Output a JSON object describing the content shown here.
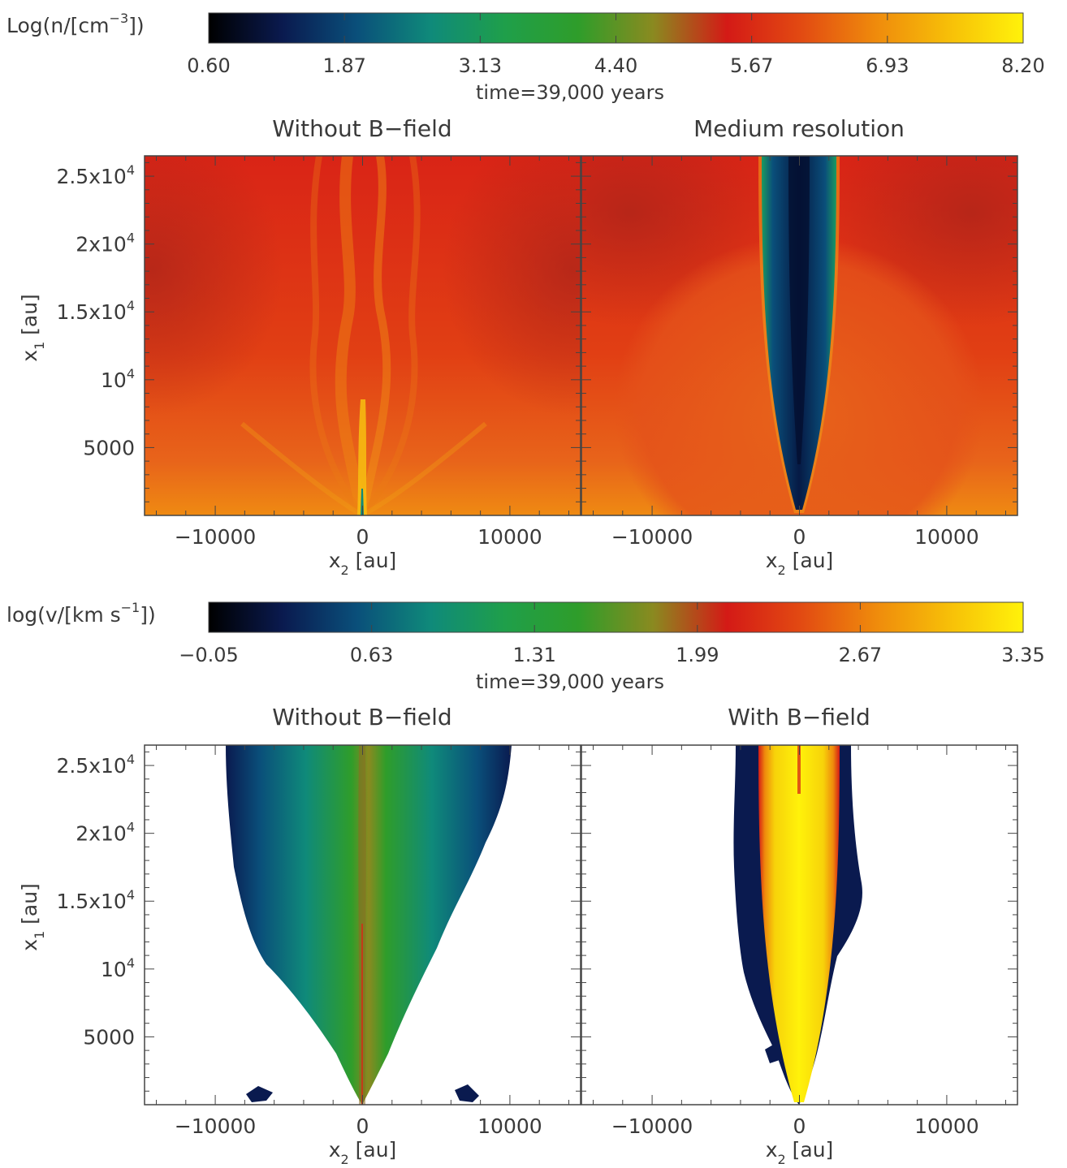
{
  "figure": {
    "colorbars": [
      {
        "label": "Log(n/[cm",
        "label_sup": "−3",
        "label_end": "])",
        "ticks": [
          "0.60",
          "1.87",
          "3.13",
          "4.40",
          "5.67",
          "6.93",
          "8.20"
        ],
        "range": [
          0.6,
          8.2
        ],
        "time": "time=39,000 years"
      },
      {
        "label": "log(v/[km s",
        "label_sup": "−1",
        "label_end": "])",
        "ticks": [
          "−0.05",
          "0.63",
          "1.31",
          "1.99",
          "2.67",
          "3.35"
        ],
        "range": [
          -0.05,
          3.35
        ],
        "time": "time=39,000 years"
      }
    ],
    "colormap": [
      "#000000",
      "#0a1a4f",
      "#0a4f7a",
      "#0f8a7a",
      "#1f9f4a",
      "#2f9d2a",
      "#8a8a20",
      "#d41a16",
      "#e24a12",
      "#ef8a0c",
      "#f7bf08",
      "#fff20a"
    ],
    "axis": {
      "x_label": "x",
      "x_sub": "2",
      "x_unit": " [au]",
      "y_label": "x",
      "y_sub": "1",
      "y_unit": " [au]",
      "x_ticks": [
        "−10000",
        "0",
        "10000"
      ],
      "y_ticks": [
        {
          "base": "2.5x10",
          "exp": "4"
        },
        {
          "base": "2x10",
          "exp": "4"
        },
        {
          "base": "1.5x10",
          "exp": "4"
        },
        {
          "base": "10",
          "exp": "4"
        },
        {
          "base": "5000",
          "exp": ""
        }
      ]
    },
    "panel_titles": [
      "Without B−field",
      "Medium resolution",
      "Without B−field",
      "With B−field"
    ]
  },
  "chart_data": [
    {
      "type": "heatmap",
      "quantity": "Log(n/[cm^-3])",
      "title": "Without B−field",
      "xlabel": "x2 [au]",
      "ylabel": "x1 [au]",
      "xlim": [
        -14800,
        14800
      ],
      "ylim": [
        0,
        26500
      ],
      "color_range": [
        0.6,
        8.2
      ]
    },
    {
      "type": "heatmap",
      "quantity": "Log(n/[cm^-3])",
      "title": "Medium resolution",
      "xlabel": "x2 [au]",
      "ylabel": "x1 [au]",
      "xlim": [
        -14800,
        14800
      ],
      "ylim": [
        0,
        26500
      ],
      "color_range": [
        0.6,
        8.2
      ]
    },
    {
      "type": "heatmap",
      "quantity": "log(v/[km s^-1])",
      "title": "Without B−field",
      "xlabel": "x2 [au]",
      "ylabel": "x1 [au]",
      "xlim": [
        -14800,
        14800
      ],
      "ylim": [
        0,
        26500
      ],
      "color_range": [
        -0.05,
        3.35
      ]
    },
    {
      "type": "heatmap",
      "quantity": "log(v/[km s^-1])",
      "title": "With B−field",
      "xlabel": "x2 [au]",
      "ylabel": "x1 [au]",
      "xlim": [
        -14800,
        14800
      ],
      "ylim": [
        0,
        26500
      ],
      "color_range": [
        -0.05,
        3.35
      ]
    }
  ]
}
